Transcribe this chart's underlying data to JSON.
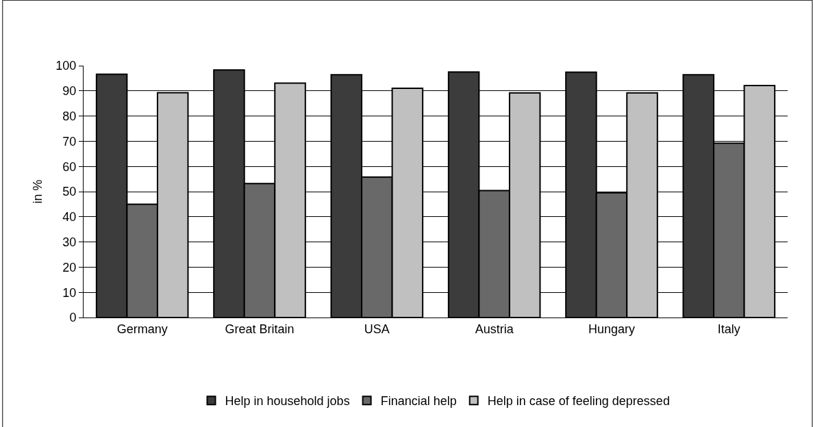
{
  "chart_data": {
    "type": "bar",
    "ylabel": "in %",
    "categories": [
      "Germany",
      "Great Britain",
      "USA",
      "Austria",
      "Hungary",
      "Italy"
    ],
    "series": [
      {
        "name": "Help in household jobs",
        "color": "#3c3c3c",
        "values": [
          96.6,
          98.3,
          96.4,
          97.5,
          97.4,
          96.4
        ]
      },
      {
        "name": "Financial help",
        "color": "#696969",
        "values": [
          45,
          53.2,
          55.8,
          50.4,
          49.5,
          69.2
        ]
      },
      {
        "name": "Help in case of feeling depressed",
        "color": "#c0c0c0",
        "values": [
          89.3,
          93.1,
          91,
          89.2,
          89.2,
          92.1
        ]
      }
    ],
    "ylim": [
      0,
      100
    ],
    "yticks": [
      0,
      10,
      20,
      30,
      40,
      50,
      60,
      70,
      80,
      90,
      100
    ],
    "grid": "y",
    "legend": "bottom"
  }
}
